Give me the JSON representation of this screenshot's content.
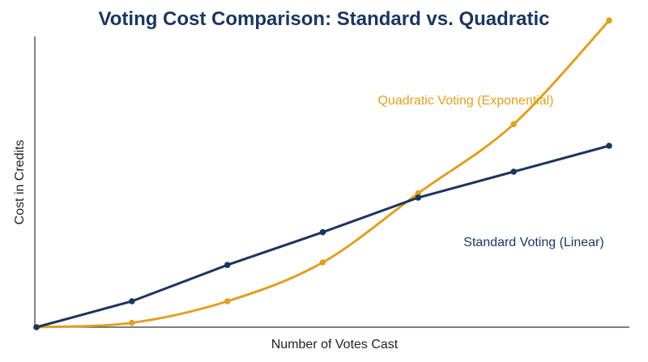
{
  "chart_data": {
    "type": "line",
    "title": "Voting Cost Comparison: Standard vs. Quadratic",
    "xlabel": "Number of Votes Cast",
    "ylabel": "Cost in Credits",
    "x": [
      0,
      1,
      2,
      3,
      4,
      5,
      6
    ],
    "ylim": [
      0,
      36
    ],
    "xlim": [
      0,
      6
    ],
    "grid": false,
    "tick_labels_shown": false,
    "series": [
      {
        "name": "Quadratic Voting (Exponential)",
        "color": "#E0A023",
        "values": [
          0,
          0.5,
          3,
          7.5,
          15.5,
          23.5,
          35.5
        ]
      },
      {
        "name": "Standard Voting (Linear)",
        "color": "#1B365D",
        "values": [
          0,
          3,
          7.2,
          11,
          15,
          18,
          21
        ]
      }
    ],
    "colors": {
      "title": "#1B365D",
      "axis": "#333333"
    }
  }
}
